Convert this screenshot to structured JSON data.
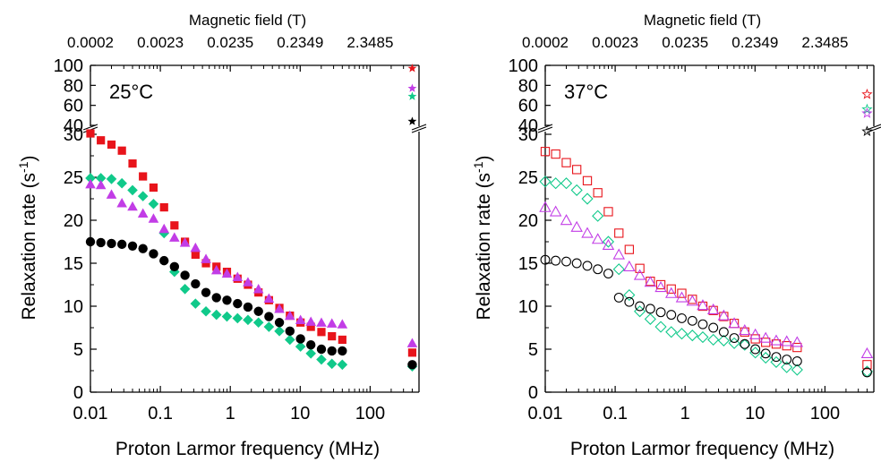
{
  "chart_data": [
    {
      "type": "scatter",
      "title": "",
      "label": "25°C",
      "xlabel": "Proton Larmor frequency (MHz)",
      "ylabel_base": "Relaxation rate (s",
      "ylabel_sup": "-1",
      "ylabel_end": ")",
      "xscale": "log",
      "xlim": [
        0.01,
        500
      ],
      "x_ticks": [
        "0.01",
        "0.1",
        "1",
        "10",
        "100"
      ],
      "top_axis_title": "Magnetic field (T)",
      "top_ticks": [
        "0.0002",
        "0.0023",
        "0.0235",
        "0.2349",
        "2.3485"
      ],
      "ylim_lower": [
        0,
        30
      ],
      "ylim_upper": [
        40,
        100
      ],
      "y_ticks_lower": [
        "0",
        "5",
        "10",
        "15",
        "20",
        "25",
        "30"
      ],
      "y_ticks_upper": [
        "40",
        "60",
        "80",
        "100"
      ],
      "axis_break": true,
      "filled": true,
      "x": [
        0.01,
        0.0141,
        0.02,
        0.0282,
        0.04,
        0.0564,
        0.0798,
        0.113,
        0.159,
        0.225,
        0.318,
        0.449,
        0.634,
        0.896,
        1.27,
        1.79,
        2.53,
        3.57,
        5.04,
        7.12,
        10.1,
        14.2,
        20.1,
        28.4,
        40.0
      ],
      "series": [
        {
          "marker": "square",
          "color": "#e8141b",
          "values": [
            30.1,
            29.3,
            28.8,
            28.1,
            26.6,
            25.1,
            23.8,
            21.5,
            19.4,
            17.5,
            16.0,
            15.0,
            14.6,
            14.0,
            13.2,
            12.5,
            11.6,
            10.7,
            9.8,
            8.9,
            8.1,
            7.6,
            7.0,
            6.5,
            6.1
          ],
          "high_field": {
            "x": 400,
            "y": 4.6
          },
          "star": {
            "x": 400,
            "y": 97
          }
        },
        {
          "marker": "diamond",
          "color": "#10c98a",
          "values": [
            24.9,
            24.9,
            24.8,
            24.3,
            23.5,
            22.8,
            21.9,
            18.5,
            14.0,
            12.0,
            10.3,
            9.4,
            9.0,
            8.8,
            8.6,
            8.4,
            8.1,
            7.6,
            7.1,
            6.1,
            5.3,
            4.5,
            3.8,
            3.3,
            3.2
          ],
          "high_field": {
            "x": 400,
            "y": 3.0
          },
          "star": {
            "x": 400,
            "y": 69
          }
        },
        {
          "marker": "triangle",
          "color": "#c23de6",
          "values": [
            24.2,
            24.1,
            23.0,
            22.0,
            21.6,
            20.8,
            20.2,
            19.0,
            18.0,
            17.4,
            16.8,
            15.5,
            14.2,
            13.8,
            13.4,
            12.8,
            12.0,
            10.9,
            9.7,
            8.9,
            8.4,
            8.2,
            8.1,
            8.0,
            7.9
          ],
          "high_field": {
            "x": 400,
            "y": 5.7
          },
          "star": {
            "x": 400,
            "y": 77
          }
        },
        {
          "marker": "circle",
          "color": "#000000",
          "values": [
            17.5,
            17.4,
            17.3,
            17.2,
            17.0,
            16.7,
            16.1,
            15.3,
            14.6,
            13.6,
            12.6,
            11.6,
            11.0,
            10.7,
            10.3,
            9.9,
            9.4,
            8.8,
            8.1,
            7.1,
            6.2,
            5.5,
            5.0,
            4.8,
            4.8
          ],
          "high_field": {
            "x": 400,
            "y": 3.2
          },
          "star": {
            "x": 400,
            "y": 44
          }
        }
      ]
    },
    {
      "type": "scatter",
      "title": "",
      "label": "37°C",
      "xlabel": "Proton Larmor frequency (MHz)",
      "ylabel_base": "Relaxation rate (s",
      "ylabel_sup": "-1",
      "ylabel_end": ")",
      "xscale": "log",
      "xlim": [
        0.01,
        500
      ],
      "x_ticks": [
        "0.01",
        "0.1",
        "1",
        "10",
        "100"
      ],
      "top_axis_title": "Magnetic field (T)",
      "top_ticks": [
        "0.0002",
        "0.0023",
        "0.0235",
        "0.2349",
        "2.3485"
      ],
      "ylim_lower": [
        0,
        30
      ],
      "ylim_upper": [
        40,
        100
      ],
      "y_ticks_lower": [
        "0",
        "5",
        "10",
        "15",
        "20",
        "25",
        "30"
      ],
      "y_ticks_upper": [
        "40",
        "60",
        "80",
        "100"
      ],
      "axis_break": true,
      "filled": false,
      "x": [
        0.01,
        0.0141,
        0.02,
        0.0282,
        0.04,
        0.0564,
        0.0798,
        0.113,
        0.159,
        0.225,
        0.318,
        0.449,
        0.634,
        0.896,
        1.27,
        1.79,
        2.53,
        3.57,
        5.04,
        7.12,
        10.1,
        14.2,
        20.1,
        28.4,
        40.0
      ],
      "series": [
        {
          "marker": "square",
          "color": "#e8141b",
          "values": [
            28.0,
            27.7,
            26.7,
            25.9,
            24.6,
            23.2,
            21.0,
            18.5,
            16.6,
            14.4,
            12.9,
            12.5,
            12.0,
            11.5,
            10.8,
            10.0,
            9.5,
            8.8,
            8.0,
            7.0,
            6.2,
            5.8,
            5.6,
            5.4,
            5.2
          ],
          "high_field": {
            "x": 400,
            "y": 3.2
          },
          "star": {
            "x": 400,
            "y": 71
          }
        },
        {
          "marker": "diamond",
          "color": "#10c98a",
          "values": [
            24.5,
            24.3,
            24.3,
            23.5,
            22.5,
            20.5,
            17.5,
            14.3,
            11.3,
            9.4,
            8.5,
            7.6,
            7.0,
            6.8,
            6.6,
            6.4,
            6.1,
            6.0,
            5.7,
            5.5,
            4.6,
            4.0,
            3.5,
            2.9,
            2.6
          ],
          "high_field": {
            "x": 400,
            "y": 2.4
          },
          "star": {
            "x": 400,
            "y": 56
          }
        },
        {
          "marker": "triangle",
          "color": "#c23de6",
          "values": [
            21.5,
            21.0,
            20.0,
            19.2,
            18.5,
            17.8,
            17.1,
            16.0,
            14.6,
            13.6,
            12.8,
            12.2,
            11.5,
            11.0,
            10.6,
            10.1,
            9.6,
            8.9,
            8.0,
            7.2,
            6.7,
            6.3,
            6.0,
            5.9,
            5.8
          ],
          "high_field": {
            "x": 400,
            "y": 4.5
          },
          "star": {
            "x": 400,
            "y": 52
          }
        },
        {
          "marker": "circle",
          "color": "#000000",
          "values": [
            15.4,
            15.3,
            15.2,
            15.0,
            14.7,
            14.3,
            13.8,
            11.0,
            10.5,
            10.0,
            9.7,
            9.3,
            9.0,
            8.6,
            8.3,
            7.9,
            7.5,
            7.0,
            6.3,
            5.6,
            5.0,
            4.5,
            4.1,
            3.8,
            3.6
          ],
          "high_field": {
            "x": 400,
            "y": 2.3
          },
          "star": {
            "x": 400,
            "y": 34
          }
        }
      ]
    }
  ]
}
